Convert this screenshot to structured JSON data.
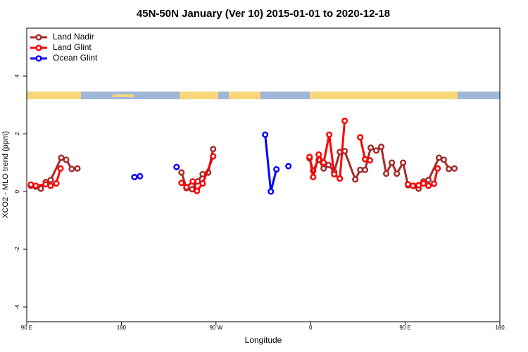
{
  "chart_data": {
    "type": "line",
    "title": "45N-50N January (Ver 10)   2015-01-01 to 2020-12-18",
    "x_label": "Longitude",
    "y_label": "XCO2 - MLO trend (ppm)",
    "xlim": [
      90,
      540
    ],
    "ylim": [
      -4.51,
      5.66
    ],
    "xticks": [
      {
        "value": 90,
        "label": "90 E"
      },
      180,
      {
        "value": 270,
        "label": "90 W"
      },
      {
        "value": 360,
        "label": "0"
      },
      {
        "value": 450,
        "label": "90 E"
      },
      {
        "value": 540,
        "label": "180"
      }
    ],
    "yticks": [
      -4,
      -2,
      0,
      2,
      4
    ],
    "legend": "top-left",
    "series": [
      {
        "name": "Land Nadir",
        "color": "#a52a2a",
        "x": [
          94.0,
          98.7,
          103.4,
          108.1,
          112.8,
          122.8,
          127.5,
          132.8,
          138.2,
          null,
          237.2,
          241.9,
          247.2,
          252.6,
          257.3,
          262.6,
          267.3,
          null,
          359.0,
          362.4,
          367.7,
          372.4,
          377.1,
          382.4,
          387.8,
          392.4,
          402.5,
          407.2,
          411.8,
          417.2,
          422.5,
          427.2,
          431.9,
          437.3,
          442.0,
          448.0,
          452.6,
          458.0,
          462.7,
          467.4,
          472.1,
          482.1,
          486.8,
          491.5,
          496.8
        ],
        "values": [
          0.2,
          0.17,
          0.1,
          0.33,
          0.4,
          1.17,
          1.1,
          0.78,
          0.8,
          null,
          0.66,
          0.12,
          0.08,
          0.35,
          0.6,
          0.66,
          1.47,
          null,
          1.15,
          0.72,
          1.1,
          0.8,
          0.92,
          0.68,
          1.37,
          1.4,
          0.42,
          0.75,
          0.75,
          1.52,
          1.42,
          1.55,
          0.62,
          1.0,
          0.62,
          1.0,
          0.22,
          0.2,
          0.1,
          0.35,
          0.4,
          1.17,
          1.1,
          0.78,
          0.8
        ]
      },
      {
        "name": "Land Glint",
        "color": "#ff0000",
        "x": [
          94.0,
          98.7,
          108.1,
          112.8,
          118.1,
          122.1,
          null,
          237.2,
          241.9,
          247.9,
          251.9,
          257.3,
          267.3,
          null,
          359.0,
          362.4,
          367.7,
          372.4,
          377.7,
          382.4,
          387.8,
          392.4,
          null,
          407.2,
          411.8,
          416.5,
          null,
          452.6,
          457.3,
          462.7,
          467.4,
          472.1,
          477.4,
          480.8
        ],
        "values": [
          0.24,
          0.2,
          0.25,
          0.2,
          0.28,
          0.8,
          null,
          0.3,
          0.15,
          0.35,
          0.02,
          0.28,
          1.22,
          null,
          1.2,
          0.5,
          1.28,
          1.0,
          1.97,
          0.6,
          0.45,
          2.45,
          null,
          1.88,
          1.12,
          1.08,
          null,
          0.25,
          0.2,
          0.22,
          0.28,
          0.2,
          0.27,
          0.8
        ]
      },
      {
        "name": "Ocean Glint",
        "color": "#0000ff",
        "x": [
          192.4,
          197.7,
          null,
          232.5,
          null,
          316.8,
          322.2,
          327.5,
          null,
          338.9
        ],
        "values": [
          0.5,
          0.53,
          null,
          0.85,
          null,
          1.97,
          0.0,
          0.77,
          null,
          0.88
        ]
      }
    ]
  }
}
